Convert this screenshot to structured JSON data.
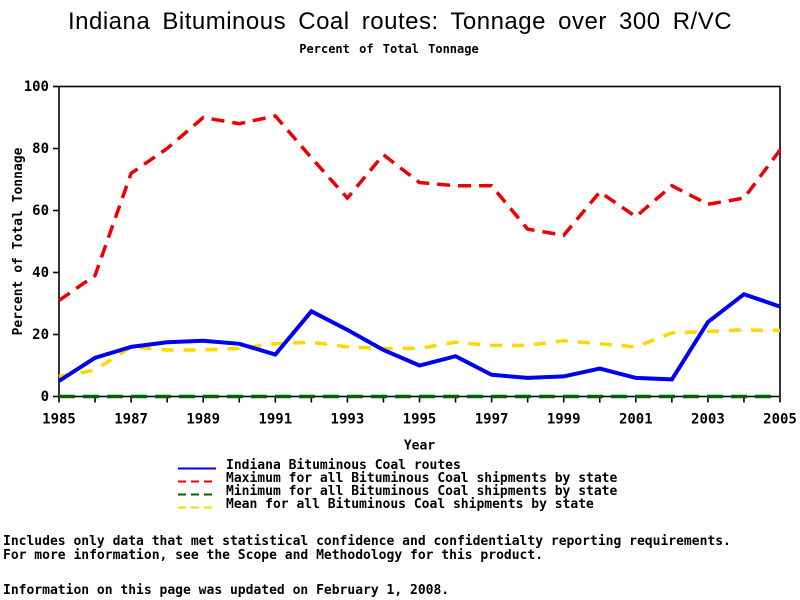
{
  "title": "Indiana Bituminous Coal routes: Tonnage over 300 R/VC",
  "subtitle": "Percent of Total Tonnage",
  "chart_data": {
    "type": "line",
    "title": "Indiana Bituminous Coal routes: Tonnage over 300 R/VC",
    "subtitle": "Percent of Total Tonnage",
    "xlabel": "Year",
    "ylabel": "Percent of Total Tonnage",
    "xlim": [
      1985,
      2005
    ],
    "ylim": [
      0,
      100
    ],
    "x_tick_labels": [
      1985,
      1987,
      1989,
      1991,
      1993,
      1995,
      1997,
      1999,
      2001,
      2003,
      2005
    ],
    "x_minor_tick_step": 1,
    "y_ticks": [
      0,
      20,
      40,
      60,
      80,
      100
    ],
    "grid": false,
    "legend_position": "bottom",
    "frame": true,
    "x": [
      1985,
      1986,
      1987,
      1988,
      1989,
      1990,
      1991,
      1992,
      1993,
      1994,
      1995,
      1996,
      1997,
      1998,
      1999,
      2000,
      2001,
      2002,
      2003,
      2004,
      2005
    ],
    "series": [
      {
        "name": "Indiana Bituminous Coal routes",
        "color": "#0000ee",
        "line_style": "solid",
        "width": 4,
        "values": [
          5,
          12.5,
          16,
          17.5,
          18,
          17,
          13.5,
          27.5,
          21.5,
          15,
          10,
          13,
          7,
          6,
          6.5,
          9,
          6,
          5.5,
          24,
          33,
          29
        ]
      },
      {
        "name": "Maximum for all Bituminous Coal shipments by state",
        "color": "#ee0000",
        "line_style": "dashed",
        "width": 3.5,
        "values": [
          31,
          39,
          72,
          80,
          90,
          88,
          90.5,
          77,
          64,
          78,
          69,
          68,
          68,
          54,
          52,
          66,
          58,
          68,
          62,
          64,
          79.5
        ]
      },
      {
        "name": "Minimum for all Bituminous Coal shipments by state",
        "color": "#006400",
        "line_style": "dashed",
        "width": 3.5,
        "values": [
          0,
          0,
          0,
          0,
          0,
          0,
          0,
          0,
          0,
          0,
          0,
          0,
          0,
          0,
          0,
          0,
          0,
          0,
          0,
          0,
          0
        ]
      },
      {
        "name": "Mean for all Bituminous Coal shipments by state",
        "color": "#ffd700",
        "line_style": "dashed",
        "width": 3.5,
        "values": [
          6.5,
          8.5,
          16,
          15,
          15,
          15.5,
          17,
          17.5,
          16,
          15.5,
          15.5,
          17.5,
          16.5,
          16.5,
          18,
          17,
          16,
          20.5,
          21,
          21.5,
          21.3
        ]
      }
    ]
  },
  "footnotes": [
    "Includes only data that met statistical confidence and confidentialty reporting requirements.",
    "For more information, see the Scope and Methodology for this product.",
    "Information on this page was updated on February 1, 2008."
  ]
}
